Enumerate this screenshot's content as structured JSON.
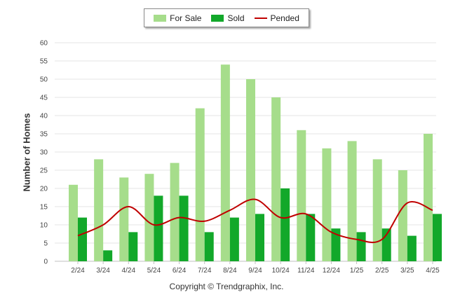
{
  "legend": {
    "for_sale": "For Sale",
    "sold": "Sold",
    "pended": "Pended"
  },
  "credit": "Copyright © Trendgraphix, Inc.",
  "colors": {
    "for_sale": "#a6dd8b",
    "sold": "#12a82a",
    "pended": "#c00000",
    "grid": "#e6e6e6"
  },
  "chart_data": {
    "type": "bar",
    "categories": [
      "2/24",
      "3/24",
      "4/24",
      "5/24",
      "6/24",
      "7/24",
      "8/24",
      "9/24",
      "10/24",
      "11/24",
      "12/24",
      "1/25",
      "2/25",
      "3/25",
      "4/25"
    ],
    "series": [
      {
        "name": "For Sale",
        "type": "bar",
        "values": [
          21,
          28,
          23,
          24,
          27,
          42,
          54,
          50,
          45,
          36,
          31,
          33,
          28,
          25,
          35
        ]
      },
      {
        "name": "Sold",
        "type": "bar",
        "values": [
          12,
          3,
          8,
          18,
          18,
          8,
          12,
          13,
          20,
          13,
          9,
          8,
          9,
          7,
          13
        ]
      },
      {
        "name": "Pended",
        "type": "line",
        "values": [
          7,
          10,
          15,
          10,
          12,
          11,
          14,
          17,
          12,
          13,
          8,
          6,
          6,
          16,
          14
        ]
      }
    ],
    "ylabel": "Number of Homes",
    "ylim": [
      0,
      60
    ],
    "yticks": [
      "0",
      "5",
      "10",
      "15",
      "20",
      "25",
      "30",
      "35",
      "40",
      "45",
      "50",
      "55",
      "60"
    ],
    "grid": true,
    "legend_position": "top-center"
  }
}
